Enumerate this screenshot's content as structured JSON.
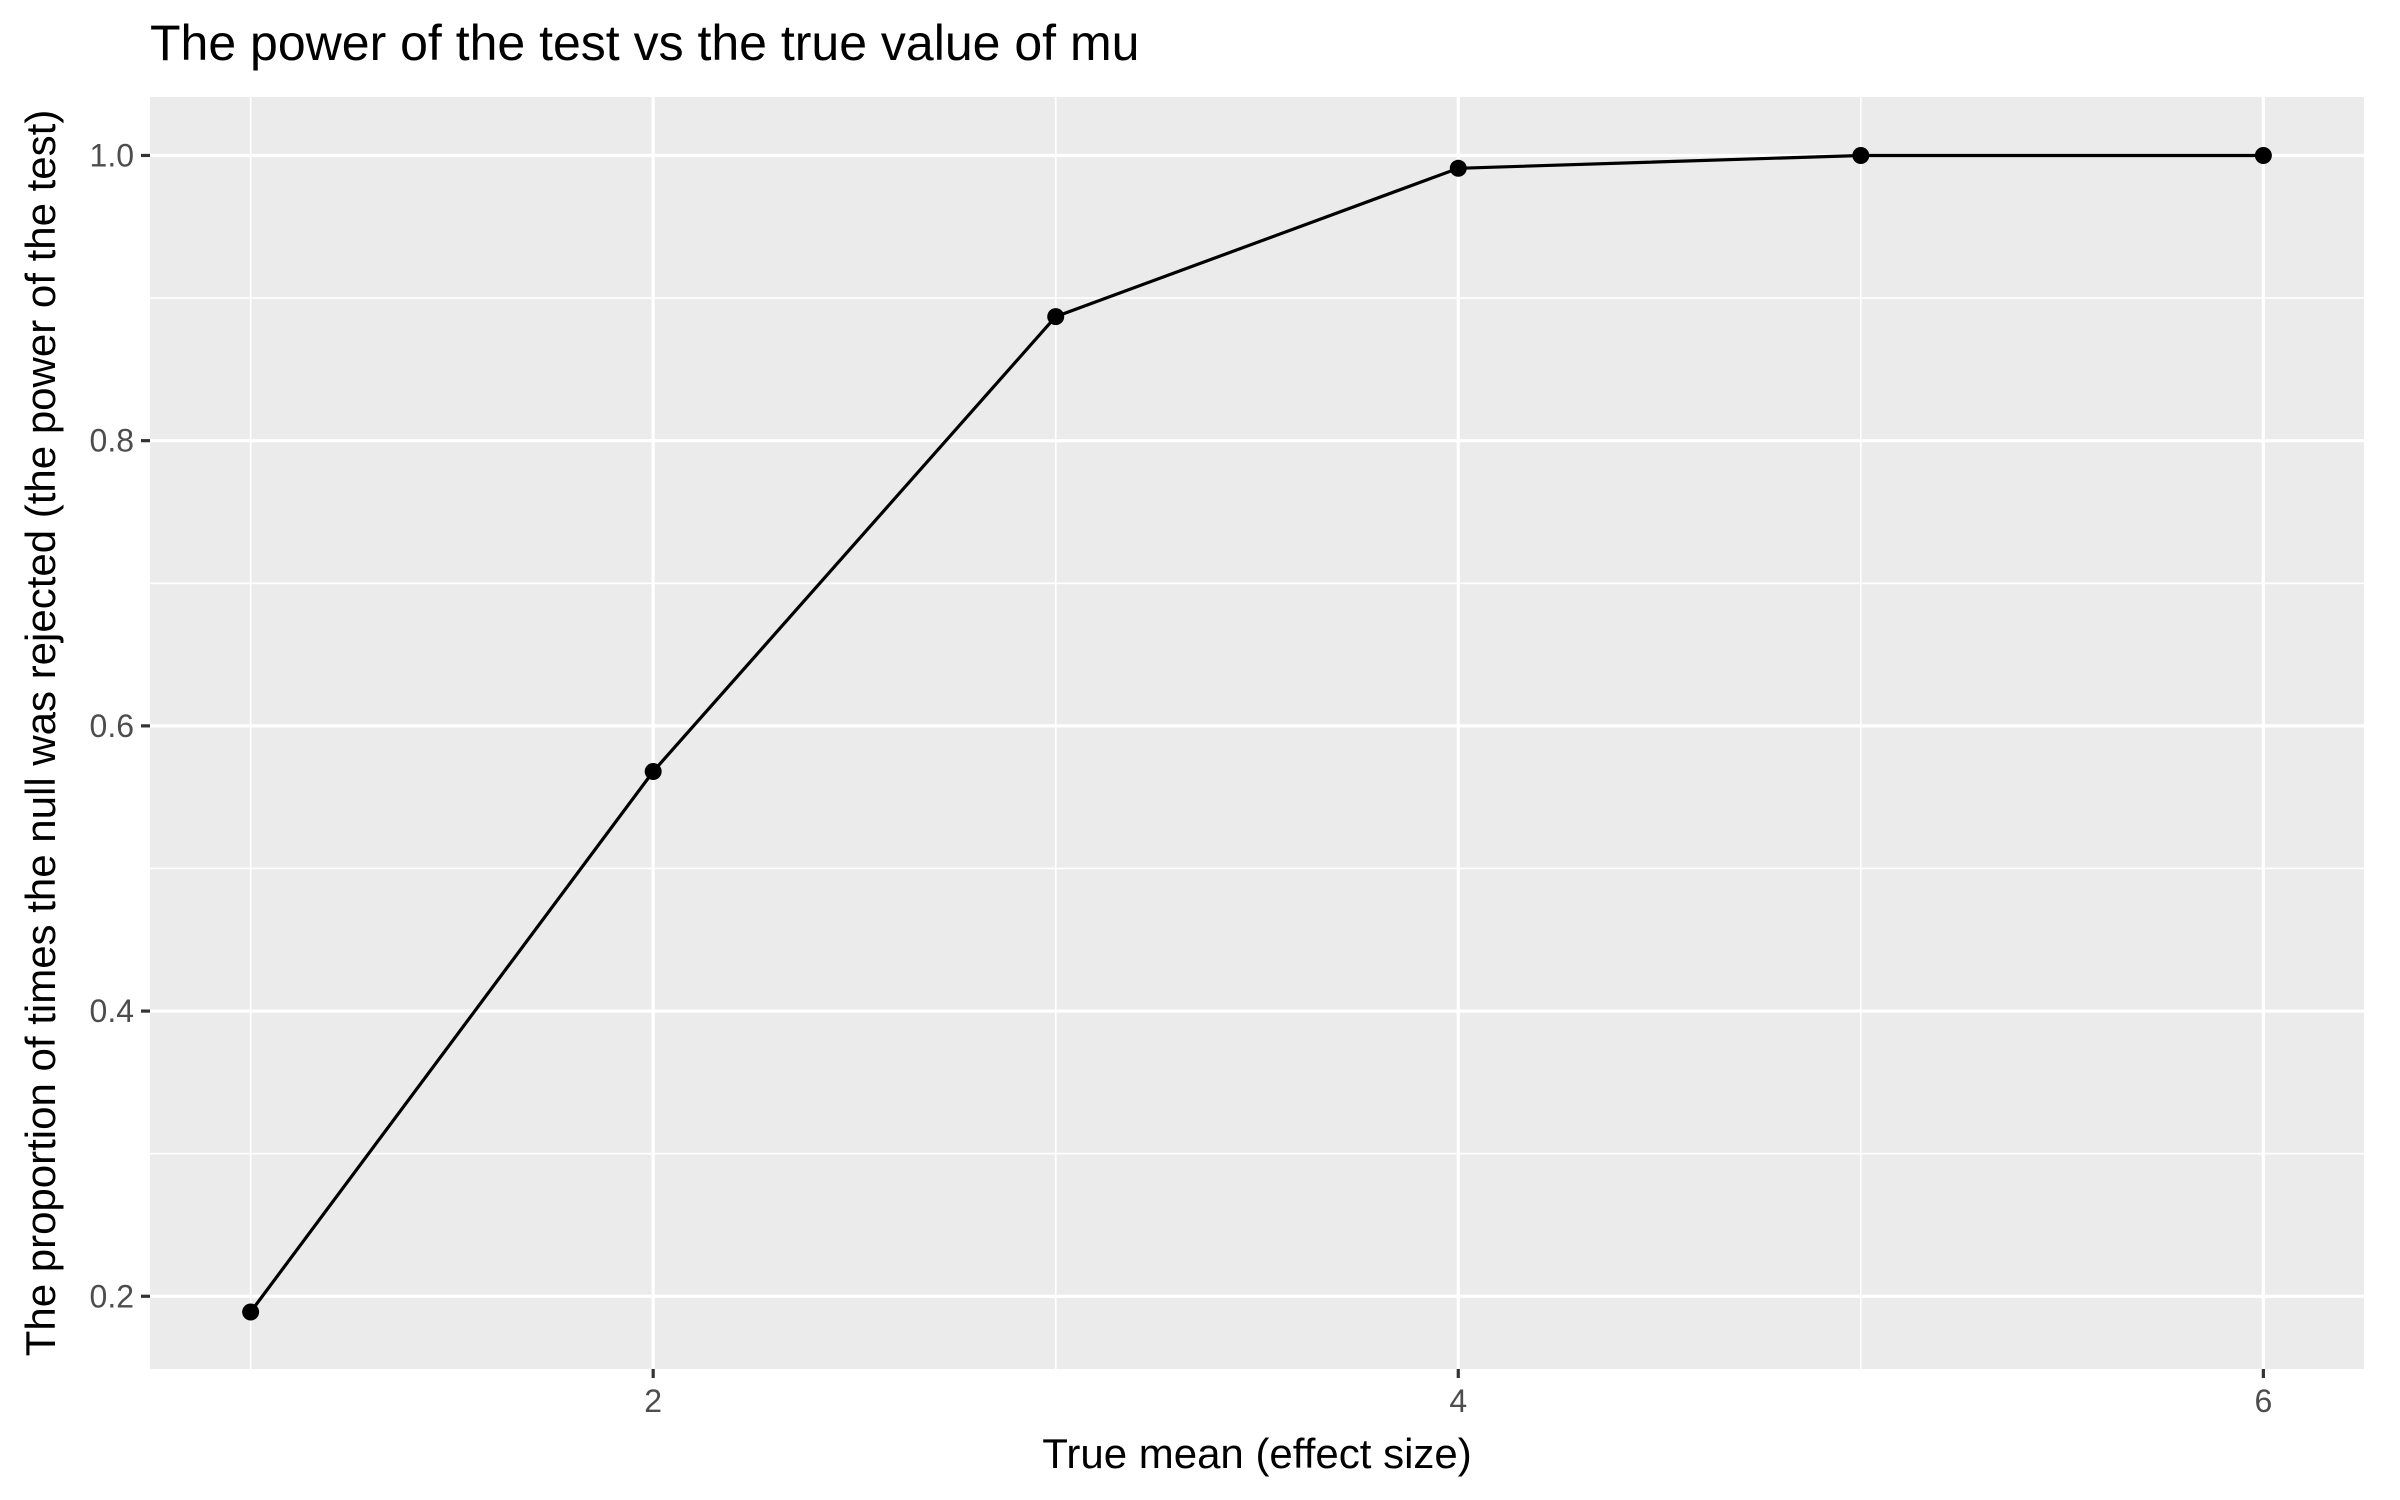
{
  "chart_data": {
    "type": "line",
    "title": "The power of the test vs the true value of mu",
    "xlabel": "True mean (effect size)",
    "ylabel": "The proportion of times the null was rejected (the power of the test)",
    "series": [
      {
        "x": [
          1,
          2,
          3,
          4,
          5,
          6
        ],
        "values": [
          0.189,
          0.568,
          0.887,
          0.991,
          1.0,
          1.0
        ]
      }
    ],
    "xlim": [
      0.75,
      6.25
    ],
    "ylim": [
      0.149,
      1.041
    ],
    "x_ticks": [
      2,
      4,
      6
    ],
    "x_tick_labels": [
      "2",
      "4",
      "6"
    ],
    "y_ticks": [
      0.2,
      0.4,
      0.6,
      0.8,
      1.0
    ],
    "y_tick_labels": [
      "0.2",
      "0.4",
      "0.6",
      "0.8",
      "1.0"
    ],
    "grid": true,
    "legend": "none",
    "colors": {
      "panel_background": "#ebebeb",
      "grid": "#ffffff",
      "series": "#000000",
      "tick_text": "#4d4d4d"
    }
  }
}
